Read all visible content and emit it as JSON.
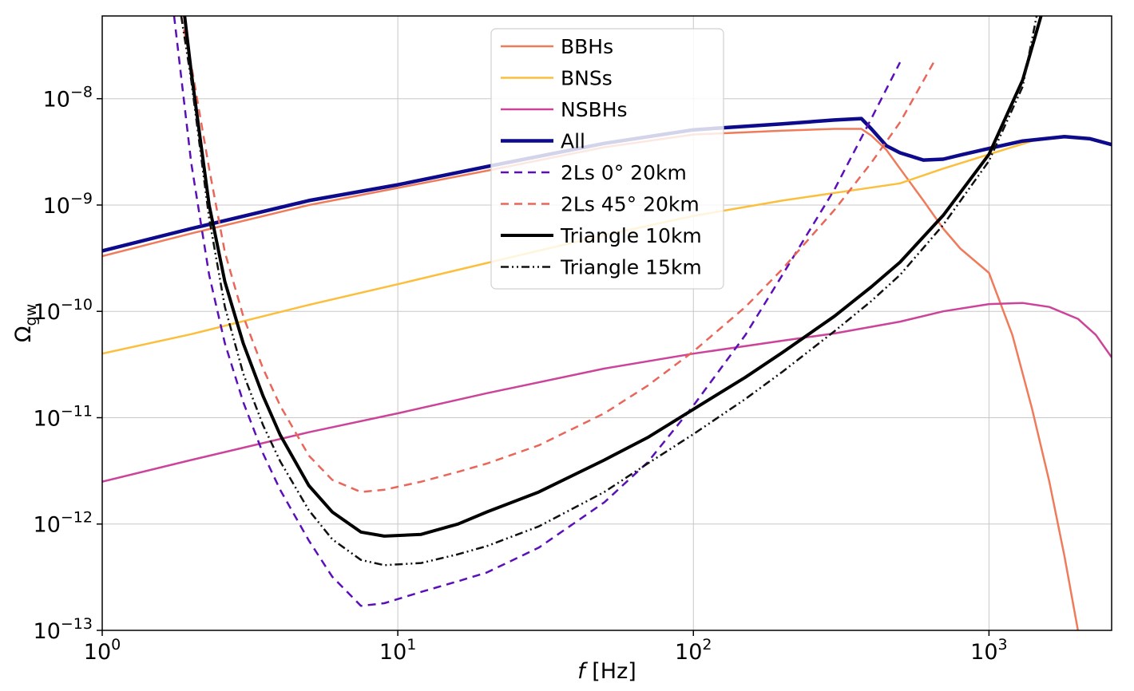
{
  "chart_data": {
    "type": "line",
    "title": "",
    "xlabel": "f [Hz]",
    "ylabel": "Ω_gw",
    "x_scale": "log",
    "y_scale": "log",
    "xlim": [
      1,
      2600
    ],
    "ylim": [
      1e-13,
      6e-08
    ],
    "grid": true,
    "legend_position": "top-center",
    "x_ticks": [
      {
        "value": 1,
        "base": "10",
        "exp": "0"
      },
      {
        "value": 10,
        "base": "10",
        "exp": "1"
      },
      {
        "value": 100,
        "base": "10",
        "exp": "2"
      },
      {
        "value": 1000,
        "base": "10",
        "exp": "3"
      }
    ],
    "y_ticks": [
      {
        "value": 1e-13,
        "base": "10",
        "exp": "−13"
      },
      {
        "value": 1e-12,
        "base": "10",
        "exp": "−12"
      },
      {
        "value": 1e-11,
        "base": "10",
        "exp": "−11"
      },
      {
        "value": 1e-10,
        "base": "10",
        "exp": "−10"
      },
      {
        "value": 1e-09,
        "base": "10",
        "exp": "−9"
      },
      {
        "value": 1e-08,
        "base": "10",
        "exp": "−8"
      }
    ],
    "series": [
      {
        "name": "BBHs",
        "color": "#ef7b5a",
        "width": 2.5,
        "dash": "",
        "x": [
          1,
          2,
          5,
          10,
          20,
          50,
          100,
          200,
          300,
          370,
          400,
          450,
          500,
          600,
          700,
          800,
          1000,
          1200,
          1400,
          1600,
          1800,
          2000
        ],
        "y": [
          3.3e-10,
          5.4e-10,
          1e-09,
          1.45e-09,
          2.1e-09,
          3.5e-09,
          4.6e-09,
          5e-09,
          5.2e-09,
          5.2e-09,
          4.5e-09,
          3.3e-09,
          2.2e-09,
          1.1e-09,
          6e-10,
          3.9e-10,
          2.3e-10,
          6e-11,
          1.2e-11,
          2.5e-12,
          5e-13,
          1e-13
        ]
      },
      {
        "name": "BNSs",
        "color": "#fbbf3c",
        "width": 2.5,
        "dash": "",
        "x": [
          1,
          2,
          5,
          10,
          20,
          50,
          100,
          200,
          300,
          500,
          700,
          1000,
          1400,
          1800,
          2200,
          2600
        ],
        "y": [
          4e-11,
          6.1e-11,
          1.15e-10,
          1.8e-10,
          2.85e-10,
          5.2e-10,
          7.9e-10,
          1.1e-09,
          1.3e-09,
          1.6e-09,
          2.2e-09,
          3e-09,
          4e-09,
          4.4e-09,
          4.2e-09,
          3.7e-09
        ]
      },
      {
        "name": "NSBHs",
        "color": "#cc449a",
        "width": 2.5,
        "dash": "",
        "x": [
          1,
          2,
          5,
          10,
          20,
          50,
          100,
          200,
          300,
          500,
          700,
          1000,
          1300,
          1600,
          2000,
          2300,
          2600
        ],
        "y": [
          2.5e-12,
          4e-12,
          7.3e-12,
          1.1e-11,
          1.7e-11,
          2.9e-11,
          4e-11,
          5.3e-11,
          6.2e-11,
          8e-11,
          1e-10,
          1.17e-10,
          1.2e-10,
          1.1e-10,
          8.5e-11,
          6e-11,
          3.7e-11
        ]
      },
      {
        "name": "All",
        "color": "#0d0b8c",
        "width": 4.5,
        "dash": "",
        "x": [
          1,
          2,
          5,
          10,
          20,
          50,
          100,
          200,
          300,
          370,
          400,
          450,
          500,
          600,
          700,
          800,
          1000,
          1300,
          1800,
          2200,
          2600
        ],
        "y": [
          3.7e-10,
          6e-10,
          1.1e-09,
          1.55e-09,
          2.3e-09,
          3.8e-09,
          5.1e-09,
          5.8e-09,
          6.3e-09,
          6.5e-09,
          5.2e-09,
          3.6e-09,
          3.1e-09,
          2.65e-09,
          2.7e-09,
          2.95e-09,
          3.4e-09,
          4e-09,
          4.4e-09,
          4.2e-09,
          3.7e-09
        ]
      },
      {
        "name": "2Ls 0° 20km",
        "color": "#5b0fb8",
        "width": 2.5,
        "dash": "10,7",
        "x": [
          1.75,
          2,
          2.3,
          2.6,
          3,
          3.5,
          4,
          5,
          6,
          7.5,
          9,
          12,
          16,
          20,
          30,
          50,
          70,
          100,
          150,
          200,
          300,
          400,
          500
        ],
        "y": [
          6e-08,
          2.5e-09,
          2.2e-10,
          5e-11,
          1.4e-11,
          4.6e-12,
          2.1e-12,
          7e-13,
          3.2e-13,
          1.7e-13,
          1.8e-13,
          2.3e-13,
          2.9e-13,
          3.5e-13,
          6e-13,
          1.6e-12,
          3.8e-12,
          1.3e-11,
          6e-11,
          2.2e-10,
          1.4e-09,
          6.5e-09,
          2.2e-08
        ]
      },
      {
        "name": "2Ls 45° 20km",
        "color": "#e8675a",
        "width": 2.5,
        "dash": "10,7",
        "x": [
          1.85,
          2,
          2.3,
          2.6,
          3,
          3.5,
          4,
          5,
          6,
          7.5,
          9,
          12,
          16,
          20,
          30,
          50,
          70,
          100,
          150,
          200,
          300,
          400,
          500,
          650
        ],
        "y": [
          6e-08,
          2.1e-08,
          2.2e-09,
          3.6e-10,
          9e-11,
          2.9e-11,
          1.3e-11,
          4.4e-12,
          2.6e-12,
          2e-12,
          2.1e-12,
          2.5e-12,
          3.1e-12,
          3.7e-12,
          5.5e-12,
          1.1e-11,
          2e-11,
          4.2e-11,
          1.1e-10,
          2.5e-10,
          9e-10,
          2.5e-09,
          6e-09,
          2.2e-08
        ]
      },
      {
        "name": "Triangle 10km",
        "color": "#000000",
        "width": 4,
        "dash": "",
        "x": [
          1.9,
          2,
          2.3,
          2.6,
          3,
          3.5,
          4,
          5,
          6,
          7.5,
          9,
          12,
          16,
          20,
          30,
          50,
          70,
          100,
          150,
          200,
          300,
          400,
          500,
          700,
          1000,
          1300,
          1500
        ],
        "y": [
          6e-08,
          1.8e-08,
          1e-09,
          1.9e-10,
          5e-11,
          1.6e-11,
          6.9e-12,
          2.3e-12,
          1.3e-12,
          8.4e-13,
          7.7e-13,
          8e-13,
          1e-12,
          1.3e-12,
          2e-12,
          4e-12,
          6.5e-12,
          1.2e-11,
          2.4e-11,
          4.1e-11,
          9e-11,
          1.7e-10,
          2.9e-10,
          8e-10,
          3e-09,
          1.5e-08,
          6e-08
        ]
      },
      {
        "name": "Triangle 15km",
        "color": "#111111",
        "width": 2.5,
        "dash": "10,4,2,4,2,4",
        "x": [
          1.85,
          2,
          2.3,
          2.6,
          3,
          3.5,
          4,
          5,
          6,
          7.5,
          9,
          12,
          16,
          20,
          30,
          50,
          70,
          100,
          150,
          200,
          300,
          400,
          500,
          700,
          1000,
          1300,
          1450
        ],
        "y": [
          6e-08,
          1.5e-08,
          7.5e-10,
          1.1e-10,
          2.6e-11,
          8.5e-12,
          3.9e-12,
          1.35e-12,
          7.2e-13,
          4.6e-13,
          4.1e-13,
          4.3e-13,
          5.2e-13,
          6.2e-13,
          9.5e-13,
          2e-12,
          3.7e-12,
          7e-12,
          1.5e-11,
          2.7e-11,
          6.5e-11,
          1.25e-10,
          2.2e-10,
          6.5e-10,
          2.6e-09,
          1.3e-08,
          6e-08
        ]
      }
    ]
  }
}
